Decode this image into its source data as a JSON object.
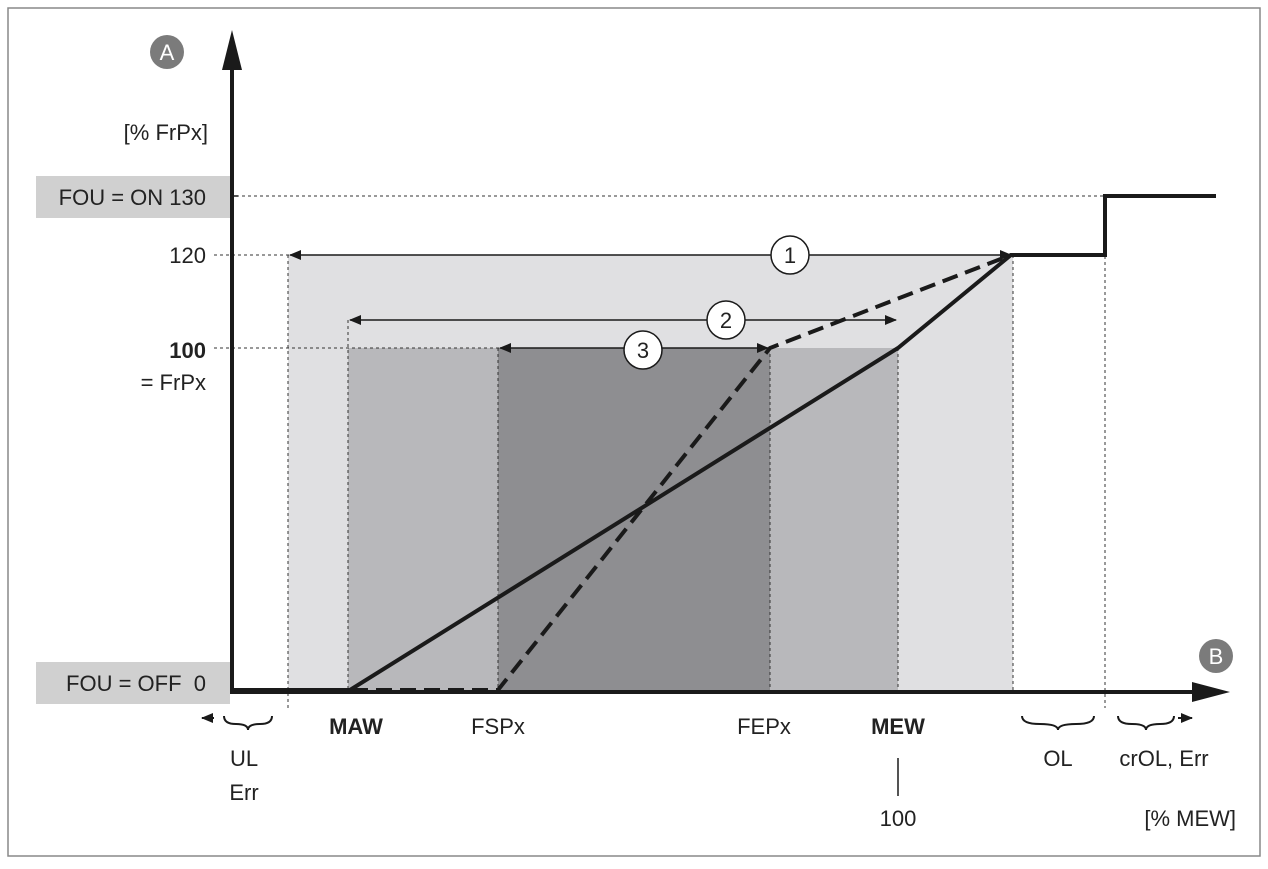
{
  "colors": {
    "frame": "#888888",
    "axis": "#1a1a1a",
    "zone_outer": "#e0e0e2",
    "zone_middle": "#b8b8bb",
    "zone_inner": "#8e8e91",
    "label_box": "#d0d0d0",
    "badge": "#7b7b7b",
    "badge_text": "#ffffff",
    "circle_fill": "#ffffff",
    "text": "#222222"
  },
  "badges": {
    "y_axis": "A",
    "x_axis": "B"
  },
  "y_unit_label": "[% FrPx]",
  "x_unit_label": "[% MEW]",
  "y_ticks": {
    "fou_on_label": "FOU = ON 130",
    "t120": "120",
    "t100": "100",
    "t100_sub": "= FrPx",
    "fou_off_label": "FOU = OFF  0"
  },
  "x_ticks": {
    "maw": "MAW",
    "fspx": "FSPx",
    "fepx": "FEPx",
    "mew": "MEW",
    "mew_value": "100"
  },
  "range_labels": {
    "ul": "UL",
    "ul_err": "Err",
    "ol": "OL",
    "crol": "crOL, Err"
  },
  "range_markers": [
    "1",
    "2",
    "3"
  ],
  "icons": {
    "y_arrow": "arrow-up-icon",
    "x_arrow": "arrow-right-icon",
    "brace": "brace-icon",
    "small_arrow": "arrow-icon"
  }
}
